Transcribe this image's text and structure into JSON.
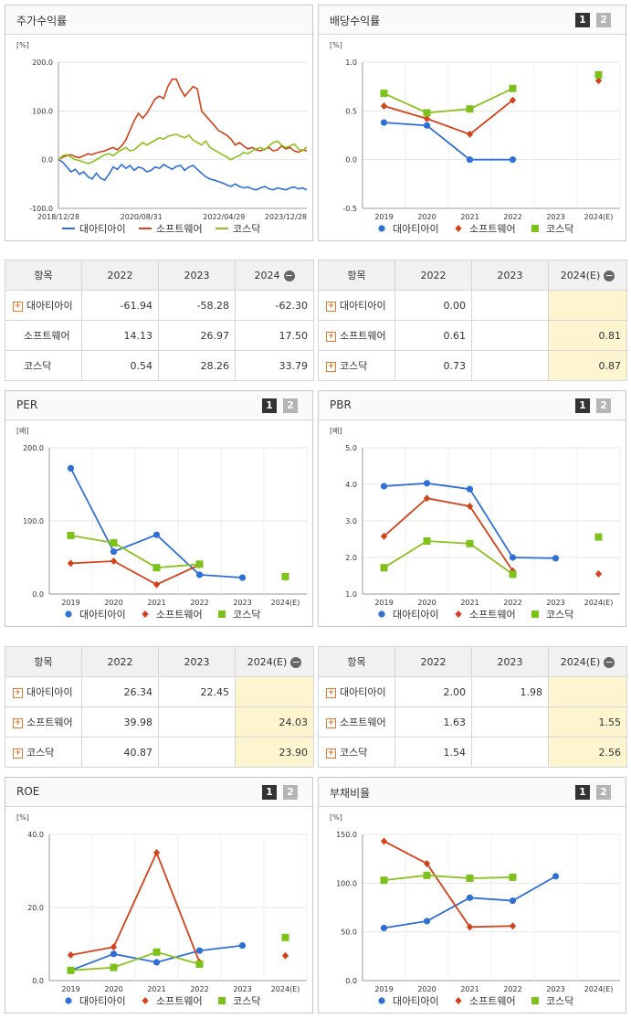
{
  "colors": {
    "s1": "#2e6fd8",
    "s2": "#d4411a",
    "s3": "#8cc11f",
    "s3sq": "#7cc21b"
  },
  "legend": [
    "대아티아이",
    "소프트웨어",
    "코스닥"
  ],
  "stock_panel": {
    "title": "주가수익률",
    "unit": "[%]",
    "y_ticks": [
      "200.0",
      "100.0",
      "0.0",
      "-100.0"
    ],
    "x_ticks": [
      "2018/12/28",
      "2020/08/31",
      "2022/04/29",
      "2023/12/28"
    ],
    "chart_data": {
      "type": "line",
      "ylim": [
        -100,
        200
      ],
      "x_range": [
        "2018/12/28",
        "2023/12/28"
      ],
      "series": [
        {
          "name": "대아티아이",
          "values": [
            0,
            -5,
            -15,
            -25,
            -20,
            -30,
            -25,
            -35,
            -40,
            -28,
            -38,
            -42,
            -30,
            -15,
            -20,
            -10,
            -18,
            -12,
            -22,
            -15,
            -18,
            -25,
            -22,
            -15,
            -18,
            -10,
            -15,
            -20,
            -14,
            -12,
            -22,
            -15,
            -12,
            -20,
            -28,
            -35,
            -40,
            -42,
            -45,
            -48,
            -52,
            -55,
            -50,
            -55,
            -58,
            -56,
            -60,
            -62,
            -58,
            -55,
            -60,
            -62,
            -58,
            -60,
            -62,
            -58,
            -56,
            -60,
            -58,
            -62
          ]
        },
        {
          "name": "소프트웨어",
          "values": [
            0,
            5,
            8,
            10,
            6,
            4,
            8,
            12,
            10,
            14,
            16,
            18,
            22,
            25,
            20,
            28,
            40,
            60,
            80,
            95,
            85,
            95,
            110,
            125,
            130,
            125,
            150,
            165,
            165,
            145,
            130,
            140,
            150,
            145,
            100,
            90,
            80,
            70,
            60,
            55,
            50,
            42,
            30,
            35,
            28,
            22,
            25,
            20,
            18,
            22,
            25,
            18,
            20,
            28,
            22,
            25,
            18,
            15,
            20,
            18
          ]
        },
        {
          "name": "코스닥",
          "values": [
            0,
            8,
            10,
            5,
            0,
            -2,
            -5,
            -8,
            -5,
            0,
            5,
            10,
            12,
            8,
            15,
            20,
            25,
            18,
            20,
            28,
            35,
            30,
            35,
            40,
            45,
            42,
            48,
            50,
            52,
            48,
            45,
            50,
            40,
            35,
            30,
            38,
            25,
            20,
            15,
            10,
            5,
            0,
            5,
            8,
            15,
            12,
            18,
            22,
            25,
            20,
            28,
            35,
            38,
            30,
            25,
            28,
            32,
            22,
            18,
            26
          ]
        }
      ]
    }
  },
  "stock_table": {
    "headers": [
      "항목",
      "2022",
      "2023",
      "2024"
    ],
    "rows": [
      {
        "name": "대아티아이",
        "v": [
          "-61.94",
          "-58.28",
          "-62.30"
        ]
      },
      {
        "name": "소프트웨어",
        "v": [
          "14.13",
          "26.97",
          "17.50"
        ]
      },
      {
        "name": "코스닥",
        "v": [
          "0.54",
          "28.26",
          "33.79"
        ]
      }
    ]
  },
  "dividend_panel": {
    "title": "배당수익률",
    "btn1": "1",
    "btn2": "2",
    "unit": "[%]",
    "y_ticks": [
      "1.0",
      "0.5",
      "0.0",
      "-0.5"
    ],
    "x_ticks": [
      "2019",
      "2020",
      "2021",
      "2022",
      "2023",
      "2024(E)"
    ],
    "chart_data": {
      "type": "line",
      "ylim": [
        -0.5,
        1.0
      ],
      "x": [
        "2019",
        "2020",
        "2021",
        "2022",
        "2023",
        "2024(E)"
      ],
      "series": [
        {
          "name": "대아티아이",
          "values": [
            0.38,
            0.35,
            0.0,
            0.0,
            null,
            null
          ]
        },
        {
          "name": "소프트웨어",
          "values": [
            0.55,
            0.42,
            0.26,
            0.61,
            null,
            0.81
          ]
        },
        {
          "name": "코스닥",
          "values": [
            0.68,
            0.48,
            0.52,
            0.73,
            null,
            0.87
          ]
        }
      ]
    }
  },
  "dividend_table": {
    "headers": [
      "항목",
      "2022",
      "2023",
      "2024(E)"
    ],
    "rows": [
      {
        "name": "대아티아이",
        "v": [
          "0.00",
          "",
          ""
        ]
      },
      {
        "name": "소프트웨어",
        "v": [
          "0.61",
          "",
          "0.81"
        ]
      },
      {
        "name": "코스닥",
        "v": [
          "0.73",
          "",
          "0.87"
        ]
      }
    ]
  },
  "per_panel": {
    "title": "PER",
    "btn1": "1",
    "btn2": "2",
    "unit": "[배]",
    "y_ticks": [
      "200.0",
      "100.0",
      "0.0"
    ],
    "x_ticks": [
      "2019",
      "2020",
      "2021",
      "2022",
      "2023",
      "2024(E)"
    ],
    "chart_data": {
      "type": "line",
      "ylim": [
        0,
        200
      ],
      "x": [
        "2019",
        "2020",
        "2021",
        "2022",
        "2023",
        "2024(E)"
      ],
      "series": [
        {
          "name": "대아티아이",
          "values": [
            172,
            58,
            81,
            26.34,
            22.45,
            null
          ]
        },
        {
          "name": "소프트웨어",
          "values": [
            42,
            45,
            13,
            39.98,
            null,
            24.03
          ]
        },
        {
          "name": "코스닥",
          "values": [
            80,
            70,
            36,
            40.87,
            null,
            23.9
          ]
        }
      ]
    }
  },
  "per_table": {
    "headers": [
      "항목",
      "2022",
      "2023",
      "2024(E)"
    ],
    "rows": [
      {
        "name": "대아티아이",
        "v": [
          "26.34",
          "22.45",
          ""
        ]
      },
      {
        "name": "소프트웨어",
        "v": [
          "39.98",
          "",
          "24.03"
        ]
      },
      {
        "name": "코스닥",
        "v": [
          "40.87",
          "",
          "23.90"
        ]
      }
    ]
  },
  "pbr_panel": {
    "title": "PBR",
    "btn1": "1",
    "btn2": "2",
    "unit": "[배]",
    "y_ticks": [
      "5.0",
      "4.0",
      "3.0",
      "2.0",
      "1.0"
    ],
    "x_ticks": [
      "2019",
      "2020",
      "2021",
      "2022",
      "2023",
      "2024(E)"
    ],
    "chart_data": {
      "type": "line",
      "ylim": [
        1.0,
        5.0
      ],
      "x": [
        "2019",
        "2020",
        "2021",
        "2022",
        "2023",
        "2024(E)"
      ],
      "series": [
        {
          "name": "대아티아이",
          "values": [
            3.95,
            4.03,
            3.87,
            2.0,
            1.98,
            null
          ]
        },
        {
          "name": "소프트웨어",
          "values": [
            2.58,
            3.62,
            3.4,
            1.63,
            null,
            1.55
          ]
        },
        {
          "name": "코스닥",
          "values": [
            1.72,
            2.45,
            2.38,
            1.54,
            null,
            2.56
          ]
        }
      ]
    }
  },
  "pbr_table": {
    "headers": [
      "항목",
      "2022",
      "2023",
      "2024(E)"
    ],
    "rows": [
      {
        "name": "대아티아이",
        "v": [
          "2.00",
          "1.98",
          ""
        ]
      },
      {
        "name": "소프트웨어",
        "v": [
          "1.63",
          "",
          "1.55"
        ]
      },
      {
        "name": "코스닥",
        "v": [
          "1.54",
          "",
          "2.56"
        ]
      }
    ]
  },
  "roe_panel": {
    "title": "ROE",
    "btn1": "1",
    "btn2": "2",
    "unit": "[%]",
    "y_ticks": [
      "40.0",
      "20.0",
      "0.0"
    ],
    "x_ticks": [
      "2019",
      "2020",
      "2021",
      "2022",
      "2023",
      "2024(E)"
    ],
    "chart_data": {
      "type": "line",
      "ylim": [
        0,
        40
      ],
      "x": [
        "2019",
        "2020",
        "2021",
        "2022",
        "2023",
        "2024(E)"
      ],
      "series": [
        {
          "name": "대아티아이",
          "values": [
            2.8,
            7.3,
            5.0,
            8.2,
            9.6,
            null
          ]
        },
        {
          "name": "소프트웨어",
          "values": [
            7.0,
            9.2,
            35.0,
            5.0,
            null,
            6.8
          ]
        },
        {
          "name": "코스닥",
          "values": [
            2.8,
            3.6,
            7.8,
            4.5,
            null,
            11.8
          ]
        }
      ]
    }
  },
  "debt_panel": {
    "title": "부채비율",
    "btn1": "1",
    "btn2": "2",
    "unit": "[%]",
    "y_ticks": [
      "150.0",
      "100.0",
      "50.0",
      "0.0"
    ],
    "x_ticks": [
      "2019",
      "2020",
      "2021",
      "2022",
      "2023",
      "2024(E)"
    ],
    "chart_data": {
      "type": "line",
      "ylim": [
        0,
        150
      ],
      "x": [
        "2019",
        "2020",
        "2021",
        "2022",
        "2023",
        "2024(E)"
      ],
      "series": [
        {
          "name": "대아티아이",
          "values": [
            54,
            61,
            85,
            82,
            107,
            null
          ]
        },
        {
          "name": "소프트웨어",
          "values": [
            143,
            120,
            55,
            56,
            null,
            null
          ]
        },
        {
          "name": "코스닥",
          "values": [
            103,
            108,
            105,
            106,
            null,
            null
          ]
        }
      ]
    }
  }
}
